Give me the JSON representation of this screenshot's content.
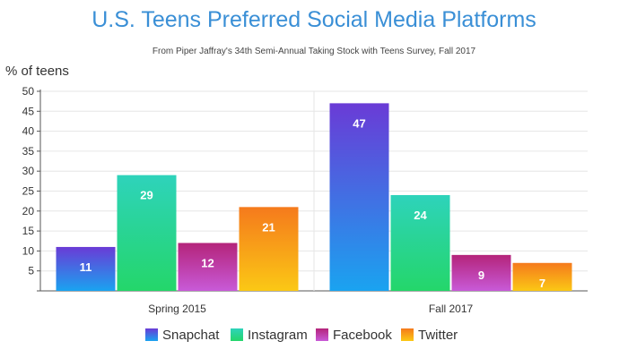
{
  "chart_data": {
    "type": "bar",
    "title": "U.S. Teens Preferred Social Media Platforms",
    "subtitle": "From Piper Jaffray's 34th Semi-Annual Taking Stock with Teens Survey, Fall 2017",
    "ylabel": "% of teens",
    "xlabel": "",
    "categories": [
      "Spring 2015",
      "Fall 2017"
    ],
    "series": [
      {
        "name": "Snapchat",
        "values": [
          11,
          47
        ],
        "colors": [
          "#6a3bd6",
          "#1aa3f0"
        ]
      },
      {
        "name": "Instagram",
        "values": [
          29,
          24
        ],
        "colors": [
          "#2ed3bb",
          "#24d66a"
        ]
      },
      {
        "name": "Facebook",
        "values": [
          12,
          9
        ],
        "colors": [
          "#b4247a",
          "#c85ad8"
        ]
      },
      {
        "name": "Twitter",
        "values": [
          21,
          7
        ],
        "colors": [
          "#f57a1c",
          "#fbc815"
        ]
      }
    ],
    "ylim": [
      0,
      50
    ],
    "yticks": [
      5,
      10,
      15,
      20,
      25,
      30,
      35,
      40,
      45,
      50
    ],
    "grid": true,
    "legend": "bottom"
  }
}
